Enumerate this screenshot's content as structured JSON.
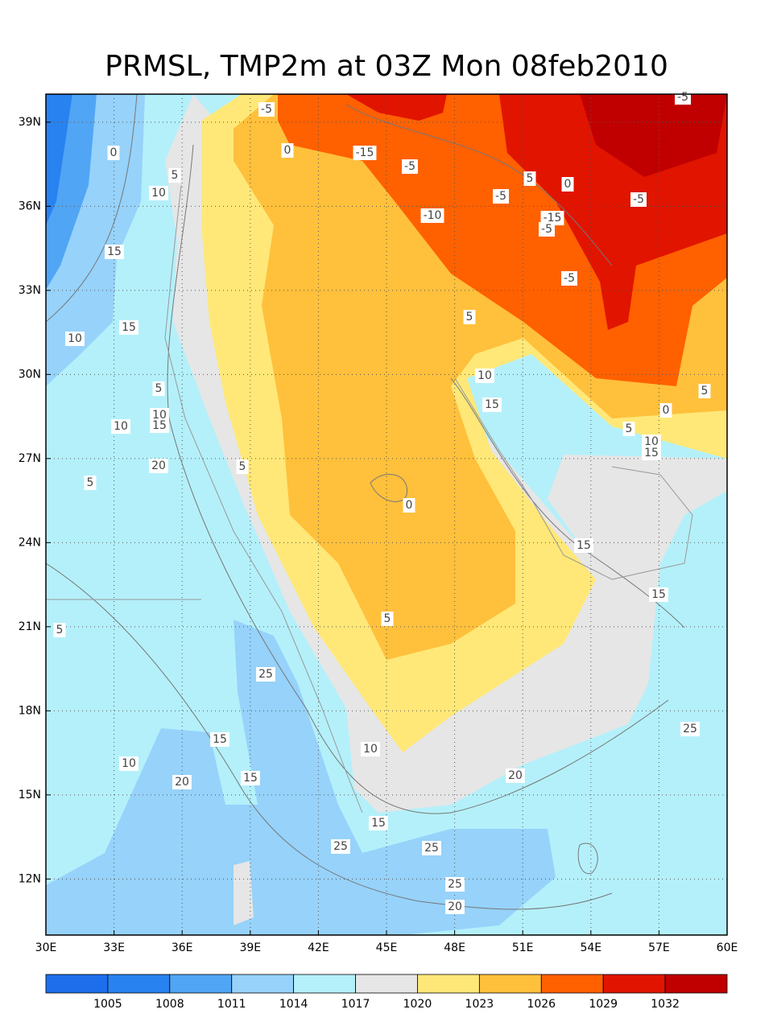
{
  "map": {
    "title": "PRMSL, TMP2m at 03Z Mon 08feb2010",
    "xlim": [
      30,
      60
    ],
    "ylim": [
      10,
      40
    ],
    "xticks": [
      {
        "value": 30,
        "label": "30E"
      },
      {
        "value": 33,
        "label": "33E"
      },
      {
        "value": 36,
        "label": "36E"
      },
      {
        "value": 39,
        "label": "39E"
      },
      {
        "value": 42,
        "label": "42E"
      },
      {
        "value": 45,
        "label": "45E"
      },
      {
        "value": 48,
        "label": "48E"
      },
      {
        "value": 51,
        "label": "51E"
      },
      {
        "value": 54,
        "label": "54E"
      },
      {
        "value": 57,
        "label": "57E"
      },
      {
        "value": 60,
        "label": "60E"
      }
    ],
    "yticks": [
      {
        "value": 12,
        "label": "12N"
      },
      {
        "value": 15,
        "label": "15N"
      },
      {
        "value": 18,
        "label": "18N"
      },
      {
        "value": 21,
        "label": "21N"
      },
      {
        "value": 24,
        "label": "24N"
      },
      {
        "value": 27,
        "label": "27N"
      },
      {
        "value": 30,
        "label": "30N"
      },
      {
        "value": 33,
        "label": "33N"
      },
      {
        "value": 36,
        "label": "36N"
      },
      {
        "value": 39,
        "label": "39N"
      }
    ],
    "grid": true,
    "colorbar": {
      "levels": [
        1005,
        1008,
        1011,
        1014,
        1017,
        1020,
        1023,
        1026,
        1029,
        1032
      ],
      "colors": [
        "#1e6eeb",
        "#2882f0",
        "#50a5f5",
        "#96d2fa",
        "#b4f0fa",
        "#e6e6e6",
        "#ffe878",
        "#ffc03c",
        "#ff6000",
        "#e11400",
        "#c00000"
      ]
    },
    "contour_labels": [
      "-5",
      "-5",
      "0",
      "0",
      "-15",
      "-5",
      "5",
      "10",
      "5",
      "0",
      "-5",
      "-5",
      "-10",
      "-15",
      "-5",
      "15",
      "-5",
      "5",
      "15",
      "10",
      "10",
      "5",
      "5",
      "15",
      "0",
      "10",
      "15",
      "10",
      "5",
      "10",
      "15",
      "20",
      "5",
      "5",
      "0",
      "15",
      "15",
      "5",
      "5",
      "25",
      "25",
      "15",
      "10",
      "10",
      "15",
      "20",
      "20",
      "15",
      "25",
      "25",
      "25",
      "20"
    ]
  }
}
